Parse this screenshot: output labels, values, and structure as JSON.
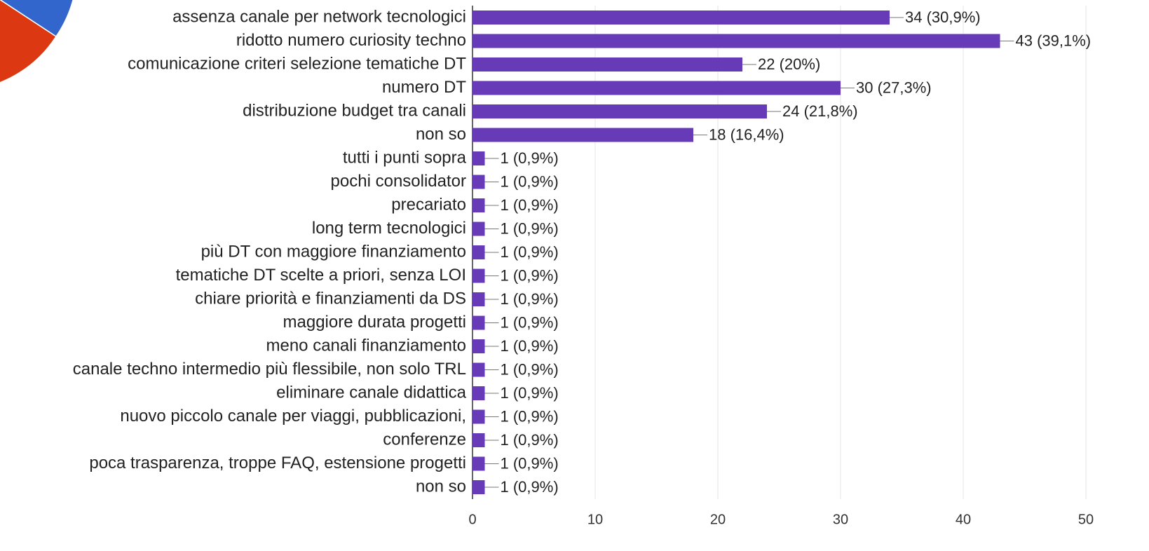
{
  "chart_data": {
    "type": "bar",
    "orientation": "horizontal",
    "categories": [
      "assenza canale per network tecnologici",
      "ridotto numero curiosity techno",
      "comunicazione criteri selezione tematiche DT",
      "numero DT",
      "distribuzione budget tra canali",
      "non so",
      "tutti i punti sopra",
      "pochi consolidator",
      "precariato",
      "long term tecnologici",
      "più DT con maggiore finanziamento",
      "tematiche DT scelte a priori, senza LOI",
      "chiare priorità e finanziamenti da DS",
      "maggiore durata progetti",
      "meno canali finanziamento",
      "canale techno intermedio più flessibile, non solo TRL",
      "eliminare canale didattica",
      "nuovo piccolo canale per viaggi, pubblicazioni,",
      "conferenze",
      "poca trasparenza, troppe FAQ, estensione progetti",
      "non so"
    ],
    "values": [
      34,
      43,
      22,
      30,
      24,
      18,
      1,
      1,
      1,
      1,
      1,
      1,
      1,
      1,
      1,
      1,
      1,
      1,
      1,
      1,
      1
    ],
    "value_labels": [
      "34 (30,9%)",
      "43 (39,1%)",
      "22 (20%)",
      "30 (27,3%)",
      "24 (21,8%)",
      "18 (16,4%)",
      "1 (0,9%)",
      "1 (0,9%)",
      "1 (0,9%)",
      "1 (0,9%)",
      "1 (0,9%)",
      "1 (0,9%)",
      "1 (0,9%)",
      "1 (0,9%)",
      "1 (0,9%)",
      "1 (0,9%)",
      "1 (0,9%)",
      "1 (0,9%)",
      "1 (0,9%)",
      "1 (0,9%)",
      "1 (0,9%)"
    ],
    "color": "#673ab7",
    "xlim": [
      0,
      50
    ],
    "xticks": [
      0,
      10,
      20,
      30,
      40,
      50
    ],
    "grid": true
  }
}
